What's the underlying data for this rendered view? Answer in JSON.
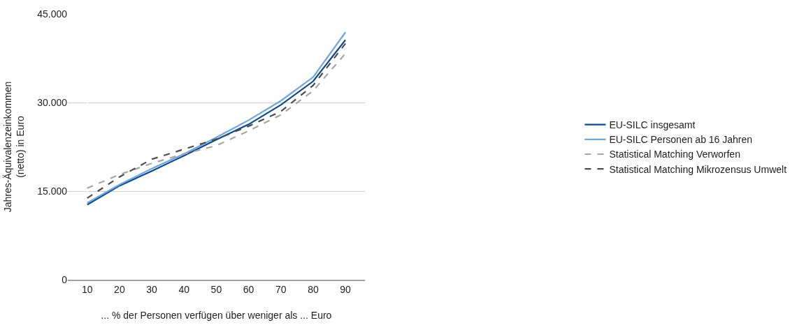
{
  "chart_data": {
    "type": "line",
    "xlabel": "... % der Personen verfügen über weniger als ... Euro",
    "ylabel": "Jahres-Äquivalenzeinkommen\n(netto) in Euro",
    "categories": [
      "10",
      "20",
      "30",
      "40",
      "50",
      "60",
      "70",
      "80",
      "90"
    ],
    "ylim": [
      0,
      45000
    ],
    "yticks": [
      {
        "value": 0,
        "label": "0"
      },
      {
        "value": 15000,
        "label": "15.000"
      },
      {
        "value": 30000,
        "label": "30.000"
      },
      {
        "value": 45000,
        "label": "45.000"
      }
    ],
    "grid": "y",
    "legend": "right",
    "marker": "none",
    "series": [
      {
        "name": "EU-SILC insgesamt",
        "color": "#0c4a8a",
        "line_style": "solid",
        "values": [
          12700,
          15900,
          18400,
          21000,
          23700,
          26300,
          29600,
          33600,
          40600
        ]
      },
      {
        "name": "EU-SILC Personen ab 16 Jahren",
        "color": "#6fa4dc",
        "line_style": "solid",
        "values": [
          13000,
          16100,
          18800,
          21300,
          24100,
          27000,
          30300,
          34300,
          41900
        ]
      },
      {
        "name": "Statistical Matching Verworfen",
        "color": "#a6a6a6",
        "line_style": "dashed",
        "values": [
          15500,
          17800,
          19700,
          21300,
          22700,
          25200,
          27900,
          32000,
          38300
        ]
      },
      {
        "name": "Statistical Matching Mikrozensus Umwelt",
        "color": "#4d4d4d",
        "line_style": "dashed",
        "values": [
          13800,
          17400,
          20400,
          22100,
          23800,
          26000,
          28500,
          32900,
          40000
        ]
      }
    ]
  }
}
